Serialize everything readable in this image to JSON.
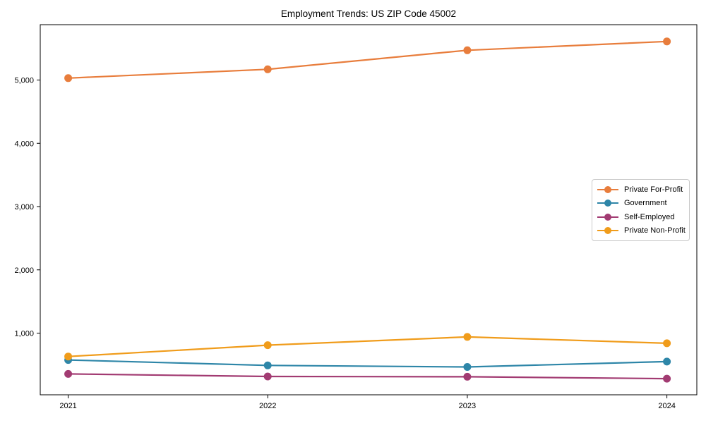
{
  "chart_data": {
    "type": "line",
    "title": "Employment Trends: US ZIP Code 45002",
    "x": [
      2021,
      2022,
      2023,
      2024
    ],
    "x_tick_labels": [
      "2021",
      "2022",
      "2023",
      "2024"
    ],
    "y_ticks": [
      1000,
      2000,
      3000,
      4000,
      5000
    ],
    "y_tick_labels": [
      "1,000",
      "2,000",
      "3,000",
      "4,000",
      "5,000"
    ],
    "series": [
      {
        "name": "Private For-Profit",
        "color": "#E87D3C",
        "values": [
          5030,
          5170,
          5470,
          5610
        ]
      },
      {
        "name": "Government",
        "color": "#2E86A8",
        "values": [
          575,
          490,
          465,
          550
        ]
      },
      {
        "name": "Self-Employed",
        "color": "#A23B72",
        "values": [
          355,
          315,
          310,
          280
        ]
      },
      {
        "name": "Private Non-Profit",
        "color": "#F09C1B",
        "values": [
          630,
          810,
          940,
          840
        ]
      }
    ],
    "xlim": [
      2020.86,
      2024.15
    ],
    "ylim": [
      25,
      5875
    ],
    "xlabel": "",
    "ylabel": "",
    "grid": false,
    "legend_position": "center right",
    "marker": "circle",
    "spines": "box"
  }
}
